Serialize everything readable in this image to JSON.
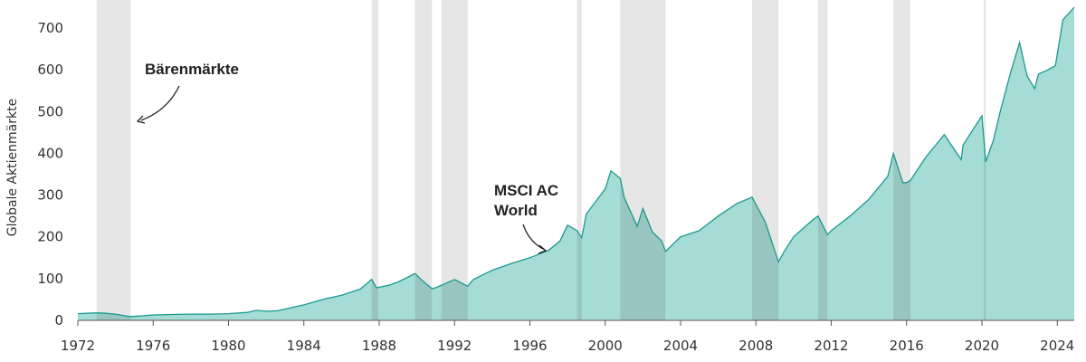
{
  "chart_data": {
    "type": "area",
    "title": "",
    "xlabel": "",
    "ylabel": "Globale Aktienmärkte",
    "xlim": [
      1972,
      2024.9
    ],
    "ylim": [
      0,
      750
    ],
    "x_ticks": [
      1972,
      1976,
      1980,
      1984,
      1988,
      1992,
      1996,
      2000,
      2004,
      2008,
      2012,
      2016,
      2020,
      2024
    ],
    "y_ticks": [
      0,
      100,
      200,
      300,
      400,
      500,
      600,
      700
    ],
    "grid": false,
    "legend": "none",
    "colors": {
      "area_fill": "#a6dcd6",
      "line": "#1a9a8e",
      "bear_band": "#e6e6e6",
      "bear_overlay": "#8aa9a6"
    },
    "series": [
      {
        "name": "MSCI AC World",
        "x": [
          1972.0,
          1973.0,
          1973.5,
          1974.0,
          1974.5,
          1974.8,
          1975.5,
          1976.0,
          1977.0,
          1978.0,
          1979.0,
          1980.0,
          1981.0,
          1981.5,
          1982.0,
          1982.6,
          1983.0,
          1984.0,
          1985.0,
          1986.0,
          1987.0,
          1987.6,
          1987.85,
          1988.5,
          1989.0,
          1989.9,
          1990.3,
          1990.8,
          1991.0,
          1992.0,
          1992.7,
          1993.0,
          1994.0,
          1995.0,
          1996.0,
          1997.0,
          1997.6,
          1998.0,
          1998.5,
          1998.75,
          1999.0,
          1999.5,
          2000.0,
          2000.3,
          2000.8,
          2001.0,
          2001.7,
          2002.0,
          2002.5,
          2003.0,
          2003.2,
          2004.0,
          2005.0,
          2006.0,
          2007.0,
          2007.8,
          2008.5,
          2009.2,
          2009.5,
          2010.0,
          2011.0,
          2011.3,
          2011.8,
          2012.0,
          2013.0,
          2014.0,
          2015.0,
          2015.3,
          2015.8,
          2016.0,
          2016.2,
          2017.0,
          2018.0,
          2018.9,
          2019.0,
          2020.0,
          2020.2,
          2020.6,
          2021.0,
          2021.5,
          2022.0,
          2022.4,
          2022.8,
          2023.0,
          2023.5,
          2023.9,
          2024.3,
          2024.9
        ],
        "values": [
          16,
          18,
          17,
          15,
          11,
          9,
          11,
          13,
          14,
          15,
          15,
          16,
          19,
          24,
          22,
          23,
          27,
          37,
          50,
          60,
          75,
          98,
          78,
          84,
          92,
          112,
          95,
          76,
          78,
          98,
          82,
          98,
          120,
          136,
          150,
          168,
          190,
          228,
          215,
          198,
          255,
          285,
          315,
          358,
          340,
          295,
          225,
          268,
          212,
          190,
          165,
          200,
          215,
          250,
          280,
          295,
          235,
          140,
          165,
          200,
          240,
          250,
          205,
          215,
          250,
          290,
          345,
          400,
          330,
          330,
          335,
          390,
          445,
          385,
          420,
          490,
          380,
          430,
          505,
          590,
          665,
          585,
          555,
          590,
          600,
          610,
          720,
          750
        ]
      }
    ],
    "bear_markets": [
      [
        1973.0,
        1974.8
      ],
      [
        1987.6,
        1987.95
      ],
      [
        1989.9,
        1990.8
      ],
      [
        1991.3,
        1992.7
      ],
      [
        1998.5,
        1998.75
      ],
      [
        2000.8,
        2003.2
      ],
      [
        2007.8,
        2009.2
      ],
      [
        2011.3,
        2011.8
      ],
      [
        2015.3,
        2016.2
      ],
      [
        2020.1,
        2020.2
      ]
    ],
    "annotations": [
      {
        "id": "bear",
        "text": "Bärenmärkte"
      },
      {
        "id": "msci",
        "text": "MSCI AC World"
      }
    ],
    "annotation_lines": [
      {
        "id": "msci",
        "lines": [
          "MSCI AC",
          "World"
        ]
      }
    ]
  }
}
